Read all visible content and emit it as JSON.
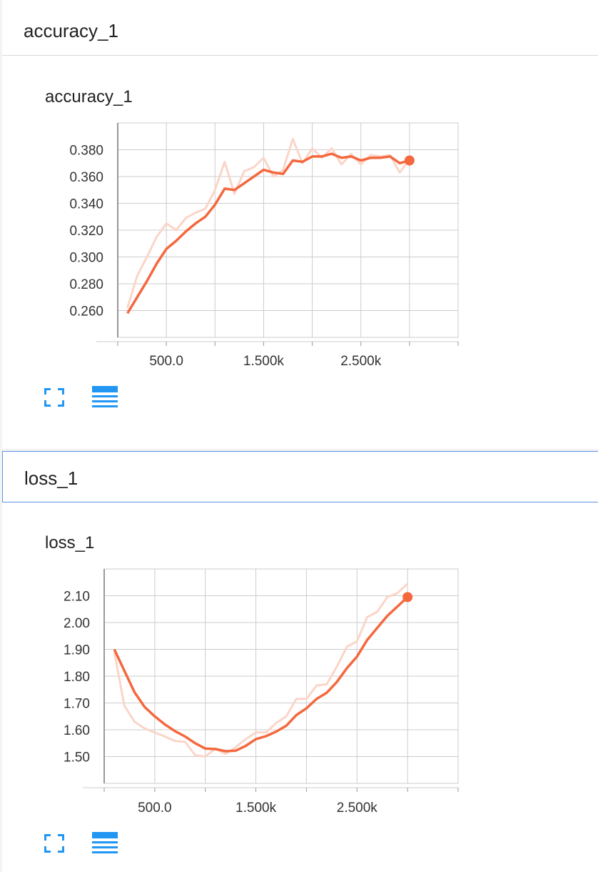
{
  "colors": {
    "accent": "#f4683e",
    "raw": "#fbd5c8",
    "icon": "#2196f3",
    "grid": "#cccccc"
  },
  "icons": [
    "fullscreen-icon",
    "data-table-icon"
  ],
  "sections": [
    {
      "header": "accuracy_1",
      "chart_data": {
        "type": "line",
        "title": "accuracy_1",
        "xlabel": "",
        "ylabel": "",
        "xlim": [
          0,
          3500
        ],
        "ylim": [
          0.24,
          0.4
        ],
        "xticks": [
          500,
          1500,
          2500
        ],
        "xtick_labels": [
          "500.0",
          "1.500k",
          "2.500k"
        ],
        "yticks": [
          0.26,
          0.28,
          0.3,
          0.32,
          0.34,
          0.36,
          0.38
        ],
        "ytick_labels": [
          "0.260",
          "0.280",
          "0.300",
          "0.320",
          "0.340",
          "0.360",
          "0.380"
        ],
        "grid": true,
        "series": [
          {
            "role": "smoothed",
            "x": [
              100,
              200,
              300,
              400,
              500,
              600,
              700,
              800,
              900,
              1000,
              1100,
              1200,
              1300,
              1400,
              1500,
              1600,
              1700,
              1800,
              1900,
              2000,
              2100,
              2200,
              2300,
              2400,
              2500,
              2600,
              2700,
              2800,
              2900,
              3000
            ],
            "y": [
              0.258,
              0.27,
              0.282,
              0.295,
              0.306,
              0.312,
              0.319,
              0.325,
              0.33,
              0.339,
              0.351,
              0.35,
              0.355,
              0.36,
              0.365,
              0.363,
              0.362,
              0.372,
              0.371,
              0.375,
              0.375,
              0.377,
              0.374,
              0.375,
              0.372,
              0.374,
              0.374,
              0.375,
              0.37,
              0.372
            ]
          },
          {
            "role": "raw",
            "x": [
              100,
              200,
              300,
              400,
              500,
              600,
              700,
              800,
              900,
              1000,
              1100,
              1200,
              1300,
              1400,
              1500,
              1600,
              1700,
              1800,
              1900,
              2000,
              2100,
              2200,
              2300,
              2400,
              2500,
              2600,
              2700,
              2800,
              2900,
              3000
            ],
            "y": [
              0.262,
              0.286,
              0.3,
              0.315,
              0.325,
              0.32,
              0.329,
              0.333,
              0.336,
              0.35,
              0.371,
              0.347,
              0.364,
              0.367,
              0.374,
              0.36,
              0.365,
              0.388,
              0.37,
              0.381,
              0.374,
              0.381,
              0.369,
              0.377,
              0.369,
              0.376,
              0.375,
              0.376,
              0.363,
              0.373
            ]
          }
        ]
      }
    },
    {
      "header": "loss_1",
      "chart_data": {
        "type": "line",
        "title": "loss_1",
        "xlabel": "",
        "ylabel": "",
        "xlim": [
          0,
          3500
        ],
        "ylim": [
          1.4,
          2.2
        ],
        "xticks": [
          500,
          1500,
          2500
        ],
        "xtick_labels": [
          "500.0",
          "1.500k",
          "2.500k"
        ],
        "yticks": [
          1.5,
          1.6,
          1.7,
          1.8,
          1.9,
          2.0,
          2.1
        ],
        "ytick_labels": [
          "1.50",
          "1.60",
          "1.70",
          "1.80",
          "1.90",
          "2.00",
          "2.10"
        ],
        "grid": true,
        "series": [
          {
            "role": "smoothed",
            "x": [
              100,
              200,
              300,
              400,
              500,
              600,
              700,
              800,
              900,
              1000,
              1100,
              1200,
              1300,
              1400,
              1500,
              1600,
              1700,
              1800,
              1900,
              2000,
              2100,
              2200,
              2300,
              2400,
              2500,
              2600,
              2700,
              2800,
              2900,
              3000
            ],
            "y": [
              1.9,
              1.82,
              1.74,
              1.685,
              1.65,
              1.62,
              1.595,
              1.575,
              1.55,
              1.53,
              1.528,
              1.52,
              1.522,
              1.54,
              1.565,
              1.576,
              1.593,
              1.615,
              1.655,
              1.68,
              1.715,
              1.738,
              1.778,
              1.83,
              1.873,
              1.935,
              1.98,
              2.025,
              2.06,
              2.095
            ]
          },
          {
            "role": "raw",
            "x": [
              100,
              200,
              300,
              400,
              500,
              600,
              700,
              800,
              900,
              1000,
              1100,
              1200,
              1300,
              1400,
              1500,
              1600,
              1700,
              1800,
              1900,
              2000,
              2100,
              2200,
              2300,
              2400,
              2500,
              2600,
              2700,
              2800,
              2900,
              3000
            ],
            "y": [
              1.89,
              1.69,
              1.63,
              1.605,
              1.59,
              1.575,
              1.558,
              1.555,
              1.505,
              1.5,
              1.53,
              1.51,
              1.535,
              1.565,
              1.59,
              1.59,
              1.625,
              1.65,
              1.715,
              1.715,
              1.765,
              1.77,
              1.835,
              1.91,
              1.93,
              2.02,
              2.04,
              2.095,
              2.11,
              2.145
            ]
          }
        ]
      }
    }
  ]
}
